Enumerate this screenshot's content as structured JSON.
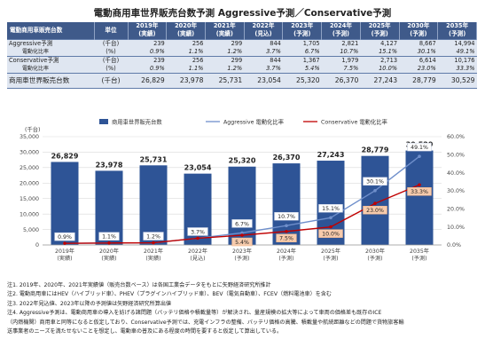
{
  "title": "電動商用車世界販売台数予測 Aggressive予測／Conservative予測",
  "table": {
    "header_label": "電動商用車販売台数",
    "header_unit": "単位",
    "years": [
      {
        "year": "2019年",
        "note": "(実績)"
      },
      {
        "year": "2020年",
        "note": "(実績)"
      },
      {
        "year": "2021年",
        "note": "(実績)"
      },
      {
        "year": "2022年",
        "note": "(見込)"
      },
      {
        "year": "2023年",
        "note": "(予測)"
      },
      {
        "year": "2024年",
        "note": "(予測)"
      },
      {
        "year": "2025年",
        "note": "(予測)"
      },
      {
        "year": "2030年",
        "note": "(予測)"
      },
      {
        "year": "2035年",
        "note": "(予測)"
      }
    ],
    "aggressive": {
      "label": "Aggressive予測",
      "unit": "(千台)",
      "values": [
        "239",
        "256",
        "299",
        "844",
        "1,705",
        "2,821",
        "4,127",
        "8,667",
        "14,994"
      ],
      "ratio_label": "電動化比率",
      "ratio_unit": "(%)",
      "ratios": [
        "0.9%",
        "1.1%",
        "1.2%",
        "3.7%",
        "6.7%",
        "10.7%",
        "15.1%",
        "30.1%",
        "49.1%"
      ]
    },
    "conservative": {
      "label": "Conservative予測",
      "unit": "(千台)",
      "values": [
        "239",
        "256",
        "299",
        "844",
        "1,367",
        "1,979",
        "2,713",
        "6,614",
        "10,176"
      ],
      "ratio_label": "電動化比率",
      "ratio_unit": "(%)",
      "ratios": [
        "0.9%",
        "1.1%",
        "1.2%",
        "3.7%",
        "5.4%",
        "7.5%",
        "10.0%",
        "23.0%",
        "33.3%"
      ]
    },
    "total": {
      "label": "商用車世界販売台数",
      "unit": "(千台)",
      "values": [
        "26,829",
        "23,978",
        "25,731",
        "23,054",
        "25,320",
        "26,370",
        "27,243",
        "28,779",
        "30,529"
      ]
    }
  },
  "chart_data": {
    "type": "bar",
    "categories": [
      "2019年",
      "2020年",
      "2021年",
      "2022年",
      "2023年",
      "2024年",
      "2025年",
      "2030年",
      "2035年"
    ],
    "category_notes": [
      "(実績)",
      "(実績)",
      "(実績)",
      "(見込)",
      "(予測)",
      "(予測)",
      "(予測)",
      "(予測)",
      "(予測)"
    ],
    "y_left_label": "(千台)",
    "ylim_left": [
      0,
      35000
    ],
    "yticks_left": [
      0,
      5000,
      10000,
      15000,
      20000,
      25000,
      30000,
      35000
    ],
    "ylim_right": [
      0,
      60
    ],
    "yticks_right": [
      0,
      10,
      20,
      30,
      40,
      50,
      60
    ],
    "grid": true,
    "legend_position": "top",
    "series": [
      {
        "name": "商用車世界販売台数",
        "type": "bar",
        "axis": "left",
        "color": "#2e5496",
        "values": [
          26829,
          23978,
          25731,
          23054,
          25320,
          26370,
          27243,
          28779,
          30529
        ],
        "labels": [
          "26,829",
          "23,978",
          "25,731",
          "23,054",
          "25,320",
          "26,370",
          "27,243",
          "28,779",
          "30,529"
        ]
      },
      {
        "name": "Aggressive 電動化比率",
        "type": "line",
        "axis": "right",
        "color": "#6f8fcb",
        "values": [
          0.9,
          1.1,
          1.2,
          3.7,
          6.7,
          10.7,
          15.1,
          30.1,
          49.1
        ],
        "labels": [
          "0.9%",
          "1.1%",
          "1.2%",
          "3.7%",
          "6.7%",
          "10.7%",
          "15.1%",
          "30.1%",
          "49.1%"
        ]
      },
      {
        "name": "Conservative 電動化比率",
        "type": "line",
        "axis": "right",
        "color": "#c00000",
        "values": [
          0.9,
          1.1,
          1.2,
          3.7,
          5.4,
          7.5,
          10.0,
          23.0,
          33.3
        ],
        "labels": [
          "",
          "",
          "",
          "",
          "5.4%",
          "7.5%",
          "10.0%",
          "23.0%",
          "33.3%"
        ]
      }
    ]
  },
  "notes": [
    "注1. 2019年、2020年、2021年実績値（販売台数ベース）は各国工業会データをもとに矢野経済研究所推計",
    "注2. 電動商用車にはHEV（ハイブリッド車）、PHEV（プラグインハイブリッド車）、BEV（電気自動車）、FCEV（燃料電池車）を含む",
    "注3. 2022年見込値、2023年以降の予測値は矢野経済研究所算出値",
    "注4. Aggressive予測は、電動商用車の導入を妨げる諸問題（バッテリ価格や積載量等）が解決され、量産規模の拡大等によって車両の価格差も既存のICE",
    "（内燃機関）商用車と同等になると仮定しており、Conservative予測では、充電インフラの整備、バッテリ価格の高騰、積載量や航続距離などの問題で貨物旅客輸",
    "送事業者のニーズを満たせないことを想定し、電動車の普及にある程度の時間を要すると仮定して算出している。"
  ]
}
